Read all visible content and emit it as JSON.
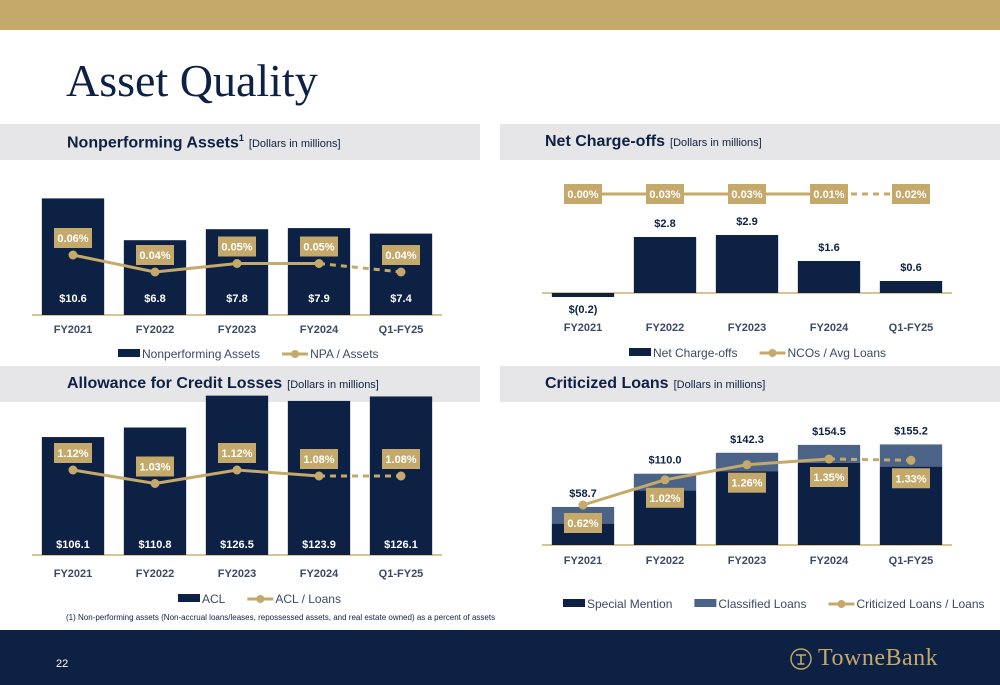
{
  "page": {
    "title": "Asset Quality",
    "page_number": "22"
  },
  "footnote": "(1)  Non-performing assets (Non-accrual loans/leases, repossessed assets, and real estate owned) as a percent of assets",
  "logo": {
    "text": "TowneBank"
  },
  "colors": {
    "navy": "#0d2145",
    "gold": "#c4a96a",
    "slate": "#4a6387",
    "panel": "#e6e6e8"
  },
  "sections": {
    "npa": {
      "title": "Nonperforming Assets",
      "sup": "1",
      "sub": "[Dollars in millions]"
    },
    "nco": {
      "title": "Net Charge-offs",
      "sub": "[Dollars in millions]"
    },
    "acl": {
      "title": "Allowance for Credit Losses",
      "sub": "[Dollars in millions]"
    },
    "crit": {
      "title": "Criticized Loans",
      "sub": "[Dollars in millions]"
    }
  },
  "chart_data": [
    {
      "id": "npa",
      "type": "bar",
      "categories": [
        "FY2021",
        "FY2022",
        "FY2023",
        "FY2024",
        "Q1-FY25"
      ],
      "series": [
        {
          "name": "Nonperforming Assets",
          "kind": "bar",
          "values": [
            10.6,
            6.8,
            7.8,
            7.9,
            7.4
          ],
          "labels": [
            "$10.6",
            "$6.8",
            "$7.8",
            "$7.9",
            "$7.4"
          ]
        },
        {
          "name": "NPA / Assets",
          "kind": "line",
          "values": [
            0.06,
            0.04,
            0.05,
            0.05,
            0.04
          ],
          "labels": [
            "0.06%",
            "0.04%",
            "0.05%",
            "0.05%",
            "0.04%"
          ],
          "last_segment_dashed": true
        }
      ],
      "legend": "bottom"
    },
    {
      "id": "nco",
      "type": "bar",
      "categories": [
        "FY2021",
        "FY2022",
        "FY2023",
        "FY2024",
        "Q1-FY25"
      ],
      "series": [
        {
          "name": "Net Charge-offs",
          "kind": "bar",
          "values": [
            -0.2,
            2.8,
            2.9,
            1.6,
            0.6
          ],
          "labels": [
            "$(0.2)",
            "$2.8",
            "$2.9",
            "$1.6",
            "$0.6"
          ]
        },
        {
          "name": "NCOs / Avg Loans",
          "kind": "line",
          "values": [
            0.0,
            0.03,
            0.03,
            0.01,
            0.02
          ],
          "labels": [
            "0.00%",
            "0.03%",
            "0.03%",
            "0.01%",
            "0.02%"
          ],
          "last_segment_dashed": true
        }
      ],
      "legend": "bottom"
    },
    {
      "id": "acl",
      "type": "bar",
      "categories": [
        "FY2021",
        "FY2022",
        "FY2023",
        "FY2024",
        "Q1-FY25"
      ],
      "series": [
        {
          "name": "ACL",
          "kind": "bar",
          "values": [
            106.1,
            110.8,
            126.5,
            123.9,
            126.1
          ],
          "labels": [
            "$106.1",
            "$110.8",
            "$126.5",
            "$123.9",
            "$126.1"
          ]
        },
        {
          "name": "ACL / Loans",
          "kind": "line",
          "values": [
            1.12,
            1.03,
            1.12,
            1.08,
            1.08
          ],
          "labels": [
            "1.12%",
            "1.03%",
            "1.12%",
            "1.08%",
            "1.08%"
          ],
          "last_segment_dashed": true
        }
      ],
      "legend": "bottom"
    },
    {
      "id": "crit",
      "type": "bar",
      "stacked": true,
      "categories": [
        "FY2021",
        "FY2022",
        "FY2023",
        "FY2024",
        "Q1-FY25"
      ],
      "totals": [
        58.7,
        110.0,
        142.3,
        154.5,
        155.2
      ],
      "total_labels": [
        "$58.7",
        "$110.0",
        "$142.3",
        "$154.5",
        "$155.2"
      ],
      "series": [
        {
          "name": "Special Mention",
          "kind": "bar",
          "values": [
            33.0,
            84.0,
            114.0,
            127.0,
            121.0
          ]
        },
        {
          "name": "Classified Loans",
          "kind": "bar",
          "values": [
            25.7,
            26.0,
            28.3,
            27.5,
            34.2
          ]
        },
        {
          "name": "Criticized Loans / Loans",
          "kind": "line",
          "values": [
            0.62,
            1.02,
            1.26,
            1.35,
            1.33
          ],
          "labels": [
            "0.62%",
            "1.02%",
            "1.26%",
            "1.35%",
            "1.33%"
          ],
          "last_segment_dashed": true
        }
      ],
      "legend": "bottom"
    }
  ]
}
